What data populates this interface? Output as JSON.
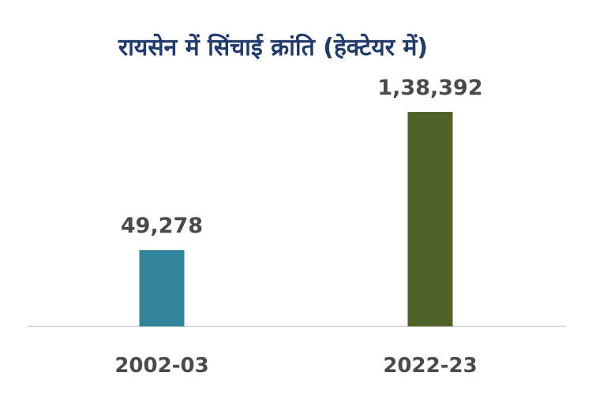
{
  "chart_data": {
    "type": "bar",
    "title": "रायसेन में सिंचाई क्रांति (हेक्टेयर में)",
    "categories": [
      "2002-03",
      "2022-23"
    ],
    "values": [
      49278,
      138392
    ],
    "data_labels": [
      "49,278",
      "1,38,392"
    ],
    "colors": [
      "#31849b",
      "#4f6228"
    ],
    "title_color": "#1f3a6d",
    "xlabel": "",
    "ylabel": "",
    "ylim": [
      0,
      138392
    ],
    "grid": false,
    "legend": "none"
  }
}
